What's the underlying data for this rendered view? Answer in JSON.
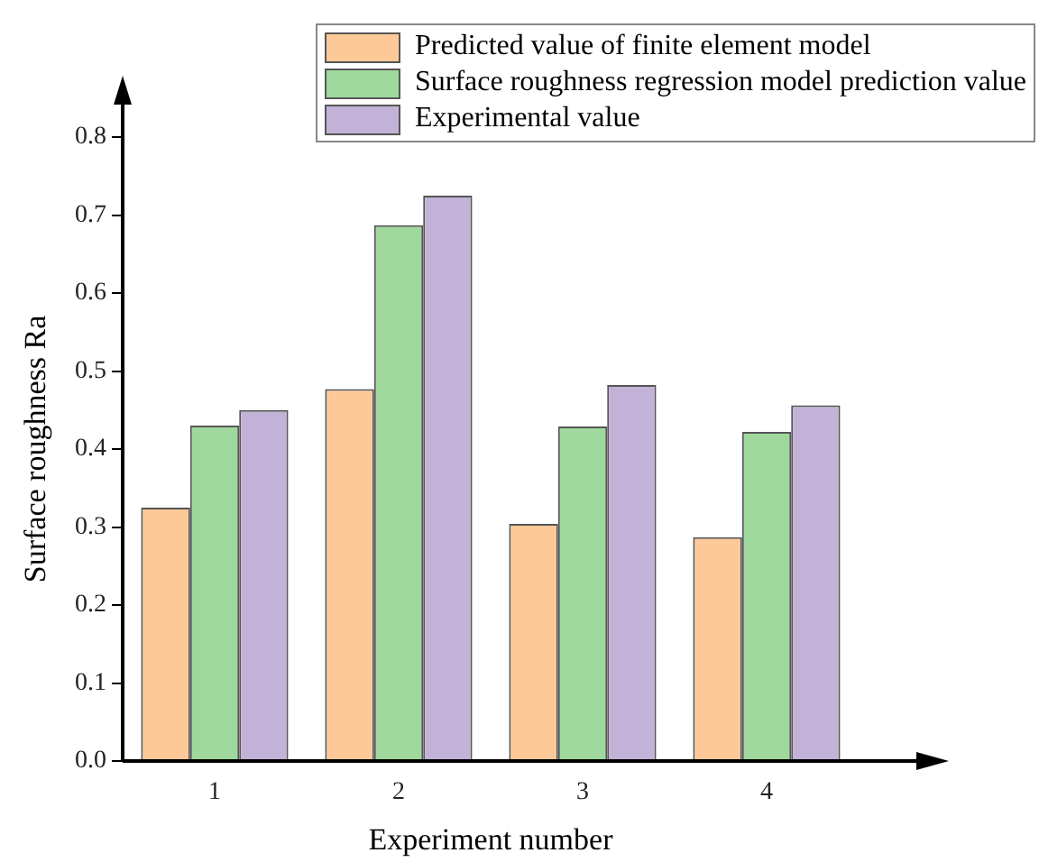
{
  "chart_data": {
    "type": "bar",
    "xlabel": "Experiment number",
    "ylabel": "Surface roughness Ra",
    "categories": [
      "1",
      "2",
      "3",
      "4"
    ],
    "series": [
      {
        "name": "Predicted value of finite element model",
        "color": "#fdc998",
        "values": [
          0.325,
          0.477,
          0.304,
          0.287
        ]
      },
      {
        "name": "Surface roughness regression model prediction value",
        "color": "#9fd89c",
        "values": [
          0.43,
          0.687,
          0.429,
          0.422
        ]
      },
      {
        "name": "Experimental value",
        "color": "#c3b2d7",
        "values": [
          0.45,
          0.725,
          0.482,
          0.456
        ]
      }
    ],
    "ylim": [
      0,
      0.8
    ],
    "yticks": [
      {
        "value": 0,
        "label": "0.0"
      },
      {
        "value": 0.1,
        "label": "0.1"
      },
      {
        "value": 0.2,
        "label": "0.2"
      },
      {
        "value": 0.3,
        "label": "0.3"
      },
      {
        "value": 0.4,
        "label": "0.4"
      },
      {
        "value": 0.5,
        "label": "0.5"
      },
      {
        "value": 0.6,
        "label": "0.6"
      },
      {
        "value": 0.7,
        "label": "0.7"
      },
      {
        "value": 0.8,
        "label": "0.8"
      }
    ],
    "grid": false,
    "legend": "top right"
  }
}
